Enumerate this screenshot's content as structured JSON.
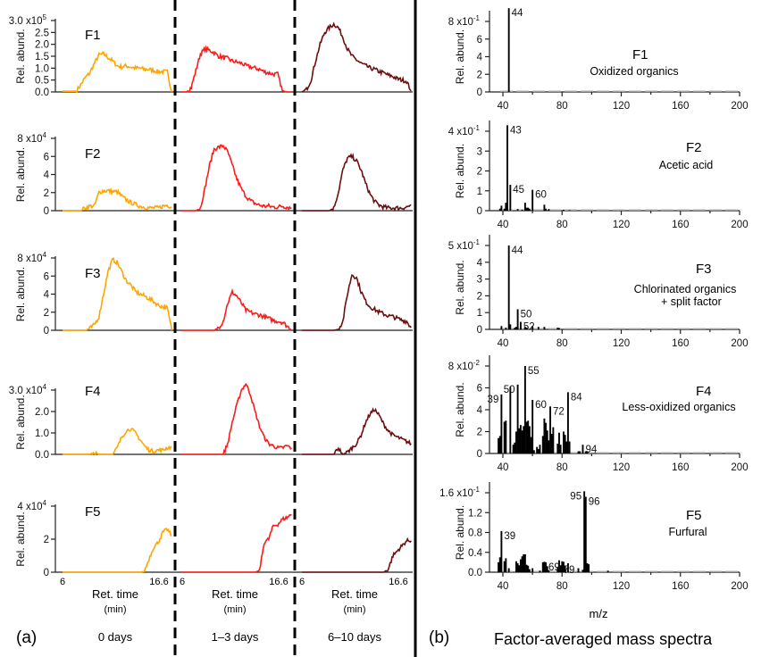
{
  "chart_data": {
    "panel_a": {
      "type": "line",
      "label": "(a)",
      "xlabel": "Ret. time",
      "xunit": "(min)",
      "x_tick_labels": [
        "6",
        "16.6"
      ],
      "x_start": 6,
      "x_step": 0.5,
      "ylabel": "Rel. abund.",
      "periods": [
        {
          "label": "0 days",
          "color": "#FFA500"
        },
        {
          "label": "1–3 days",
          "color": "#FF1A1A"
        },
        {
          "label": "6–10 days",
          "color": "#6B0F10"
        }
      ],
      "factors": [
        {
          "name": "F1",
          "yticks": [
            "0.0",
            "0.5",
            "1.0",
            "1.5",
            "2.0",
            "2.5",
            "3.0"
          ],
          "exp": "5",
          "series": [
            [
              0.03,
              0.03,
              0.03,
              0.03,
              0.3,
              0.6,
              0.8,
              1.2,
              1.55,
              1.6,
              1.45,
              1.3,
              1.1,
              1.05,
              1.1,
              1.05,
              1.0,
              1.0,
              0.95,
              0.95,
              0.9,
              0.85,
              0.85,
              0.85,
              0
            ],
            [
              0,
              0,
              0.2,
              0.9,
              1.6,
              1.8,
              1.75,
              1.65,
              1.5,
              1.45,
              1.4,
              1.3,
              1.25,
              1.2,
              1.1,
              1.05,
              1.0,
              0.95,
              0.85,
              0.8,
              0.75,
              0.75,
              0.05,
              0,
              0
            ],
            [
              0,
              0.1,
              0.5,
              1.3,
              2.0,
              2.5,
              2.7,
              2.85,
              2.7,
              2.3,
              1.8,
              1.5,
              1.35,
              1.2,
              1.1,
              1.0,
              0.95,
              0.85,
              0.8,
              0.7,
              0.65,
              0.55,
              0.5,
              0.45,
              0.05
            ]
          ]
        },
        {
          "name": "F2",
          "yticks": [
            "0",
            "2",
            "4",
            "6",
            "8"
          ],
          "exp": "4",
          "series": [
            [
              0,
              0,
              0,
              0,
              0,
              0.3,
              0.5,
              0.5,
              2.0,
              2.2,
              2.2,
              2.1,
              2.1,
              1.6,
              1.2,
              0.9,
              0.7,
              0.5,
              0.4,
              0.3,
              0.3,
              0.3,
              0.5,
              0.6,
              0.4
            ],
            [
              0,
              0,
              0,
              0,
              0.3,
              2.5,
              5.0,
              6.8,
              7.0,
              7.2,
              6.5,
              5.0,
              3.5,
              2.4,
              1.6,
              1.1,
              0.8,
              0.6,
              0.5,
              0.5,
              0.4,
              0.4,
              0.5,
              0.4,
              0.3
            ],
            [
              0,
              0,
              0,
              0,
              0,
              0,
              0,
              0.3,
              2.0,
              4.5,
              5.8,
              6.0,
              5.5,
              4.5,
              3.0,
              1.8,
              1.0,
              0.6,
              0.4,
              0.3,
              0.3,
              0.3,
              0.3,
              0.4,
              0.6
            ]
          ]
        },
        {
          "name": "F3",
          "yticks": [
            "0",
            "2",
            "4",
            "6",
            "8"
          ],
          "exp": "4",
          "series": [
            [
              0,
              0,
              0,
              0,
              0,
              0,
              0.2,
              0.6,
              1.5,
              4.0,
              6.5,
              7.8,
              7.5,
              6.5,
              5.5,
              5.0,
              4.3,
              4.0,
              3.8,
              3.5,
              3.2,
              2.8,
              2.6,
              2.5,
              0
            ],
            [
              0,
              0,
              0,
              0,
              0,
              0,
              0,
              0,
              0.3,
              1.0,
              3.0,
              4.2,
              3.8,
              3.0,
              2.2,
              2.0,
              1.8,
              1.7,
              1.5,
              1.3,
              1.1,
              1.0,
              0.9,
              0.5,
              0
            ],
            [
              0,
              0,
              0,
              0,
              0,
              0,
              0,
              0,
              0.1,
              1.0,
              4.0,
              6.2,
              5.8,
              4.3,
              3.2,
              2.6,
              2.3,
              2.0,
              1.8,
              1.6,
              1.5,
              1.3,
              1.1,
              1.0,
              0.3
            ]
          ]
        },
        {
          "name": "F4",
          "yticks": [
            "0.0",
            "1.0",
            "2.0",
            "3.0"
          ],
          "exp": "4",
          "series": [
            [
              0,
              0,
              0,
              0,
              0,
              0,
              0,
              0.1,
              0,
              0,
              0,
              0,
              0.3,
              0.8,
              1.1,
              1.2,
              1.0,
              0.7,
              0.4,
              0.2,
              0.15,
              0.2,
              0.2,
              0.3,
              0.35
            ],
            [
              0,
              0,
              0,
              0,
              0,
              0,
              0,
              0,
              0,
              0,
              0.5,
              1.5,
              2.3,
              3.0,
              3.3,
              2.8,
              2.0,
              1.3,
              0.8,
              0.5,
              0.4,
              0.3,
              0.3,
              0.4,
              0.3
            ],
            [
              0,
              0,
              0,
              0,
              0,
              0,
              0,
              0,
              0.3,
              0,
              0.1,
              0.3,
              0.5,
              0.9,
              1.5,
              1.9,
              2.1,
              1.8,
              1.4,
              1.1,
              0.9,
              0.8,
              0.7,
              0.6,
              0.5
            ]
          ]
        },
        {
          "name": "F5",
          "yticks": [
            "0",
            "2",
            "4"
          ],
          "exp": "4",
          "series": [
            [
              0,
              0,
              0,
              0,
              0,
              0,
              0,
              0,
              0,
              0,
              0,
              0,
              0,
              0,
              0,
              0,
              0,
              0,
              0.05,
              0.8,
              1.5,
              1.8,
              2.4,
              2.6,
              2.2
            ],
            [
              0,
              0,
              0,
              0,
              0,
              0,
              0,
              0,
              0,
              0,
              0,
              0,
              0,
              0,
              0,
              0,
              0,
              0.1,
              1.8,
              2.0,
              2.8,
              2.9,
              3.2,
              3.3,
              3.5
            ],
            [
              0,
              0,
              0,
              0,
              0,
              0,
              0,
              0,
              0,
              0,
              0,
              0,
              0,
              0,
              0,
              0,
              0,
              0,
              0,
              0.2,
              1.0,
              1.3,
              1.6,
              1.9,
              1.9
            ]
          ]
        }
      ]
    },
    "panel_b": {
      "type": "bar",
      "label": "(b)",
      "title": "Factor-averaged mass spectra",
      "xlabel": "m/z",
      "ylabel": "Rel. abund.",
      "x_ticks": [
        "40",
        "80",
        "120",
        "160",
        "200"
      ],
      "xlim": [
        31,
        200
      ],
      "factors": [
        {
          "name": "F1",
          "description": "Oxidized organics",
          "yticks": [
            "0",
            "2",
            "4",
            "6",
            "8"
          ],
          "exp": "-1",
          "bars": [
            [
              44,
              0.95
            ]
          ],
          "peak_labels": [
            "44"
          ]
        },
        {
          "name": "F2",
          "description": "Acetic acid",
          "yticks": [
            "0",
            "1",
            "2",
            "3",
            "4"
          ],
          "exp": "-1",
          "bars": [
            [
              38,
              0.01
            ],
            [
              39,
              0.025
            ],
            [
              41,
              0.01
            ],
            [
              42,
              0.04
            ],
            [
              43,
              0.43
            ],
            [
              45,
              0.13
            ],
            [
              50,
              0.008
            ],
            [
              53,
              0.005
            ],
            [
              55,
              0.04
            ],
            [
              56,
              0.015
            ],
            [
              57,
              0.015
            ],
            [
              58,
              0.01
            ],
            [
              60,
              0.105
            ],
            [
              68,
              0.03
            ],
            [
              69,
              0.01
            ],
            [
              71,
              0.008
            ],
            [
              81,
              0.005
            ],
            [
              85,
              0.003
            ]
          ],
          "peak_labels": [
            "43",
            "45",
            "60"
          ]
        },
        {
          "name": "F3",
          "description": "Chlorinated organics",
          "description2": "+ split factor",
          "yticks": [
            "0",
            "1",
            "2",
            "3",
            "4",
            "5"
          ],
          "exp": "-1",
          "bars": [
            [
              39,
              0.02
            ],
            [
              42,
              0.01
            ],
            [
              44,
              0.5
            ],
            [
              45,
              0.03
            ],
            [
              48,
              0.01
            ],
            [
              49,
              0.015
            ],
            [
              50,
              0.12
            ],
            [
              52,
              0.045
            ],
            [
              55,
              0.015
            ],
            [
              56,
              0.01
            ],
            [
              60,
              0.02
            ],
            [
              64,
              0.015
            ],
            [
              68,
              0.015
            ],
            [
              77,
              0.01
            ],
            [
              78,
              0.008
            ]
          ],
          "peak_labels": [
            "44",
            "50",
            "52"
          ]
        },
        {
          "name": "F4",
          "description": "Less-oxidized organics",
          "yticks": [
            "0",
            "2",
            "4",
            "6",
            "8"
          ],
          "exp": "-2",
          "bars": [
            [
              37,
              0.014
            ],
            [
              38,
              0.016
            ],
            [
              39,
              0.054
            ],
            [
              41,
              0.029
            ],
            [
              42,
              0.03
            ],
            [
              45,
              0.061
            ],
            [
              47,
              0.008
            ],
            [
              48,
              0.01
            ],
            [
              49,
              0.02
            ],
            [
              50,
              0.063
            ],
            [
              51,
              0.023
            ],
            [
              52,
              0.026
            ],
            [
              53,
              0.021
            ],
            [
              54,
              0.025
            ],
            [
              55,
              0.08
            ],
            [
              56,
              0.029
            ],
            [
              57,
              0.03
            ],
            [
              58,
              0.025
            ],
            [
              59,
              0.015
            ],
            [
              60,
              0.049
            ],
            [
              61,
              0.003
            ],
            [
              63,
              0.006
            ],
            [
              64,
              0.004
            ],
            [
              65,
              0.008
            ],
            [
              67,
              0.016
            ],
            [
              68,
              0.032
            ],
            [
              69,
              0.028
            ],
            [
              70,
              0.021
            ],
            [
              71,
              0.012
            ],
            [
              72,
              0.043
            ],
            [
              73,
              0.018
            ],
            [
              74,
              0.024
            ],
            [
              77,
              0.009
            ],
            [
              78,
              0.019
            ],
            [
              79,
              0.008
            ],
            [
              81,
              0.02
            ],
            [
              82,
              0.017
            ],
            [
              83,
              0.011
            ],
            [
              84,
              0.056
            ],
            [
              85,
              0.011
            ],
            [
              91,
              0.002
            ],
            [
              92,
              0.002
            ],
            [
              94,
              0.008
            ],
            [
              96,
              0.002
            ],
            [
              97,
              0.002
            ]
          ],
          "peak_labels": [
            "39",
            "50",
            "55",
            "60",
            "72",
            "84",
            "94"
          ]
        },
        {
          "name": "F5",
          "description": "Furfural",
          "yticks": [
            "0.0",
            "0.4",
            "0.8",
            "1.2",
            "1.6"
          ],
          "exp": "-1",
          "bars": [
            [
              37,
              0.02
            ],
            [
              38,
              0.03
            ],
            [
              39,
              0.083
            ],
            [
              41,
              0.022
            ],
            [
              42,
              0.028
            ],
            [
              44,
              0.008
            ],
            [
              49,
              0.022
            ],
            [
              50,
              0.018
            ],
            [
              51,
              0.014
            ],
            [
              52,
              0.026
            ],
            [
              53,
              0.032
            ],
            [
              54,
              0.036
            ],
            [
              55,
              0.036
            ],
            [
              56,
              0.015
            ],
            [
              57,
              0.013
            ],
            [
              58,
              0.006
            ],
            [
              60,
              0.008
            ],
            [
              65,
              0.003
            ],
            [
              67,
              0.02
            ],
            [
              68,
              0.021
            ],
            [
              69,
              0.02
            ],
            [
              70,
              0.012
            ],
            [
              71,
              0.004
            ],
            [
              77,
              0.01
            ],
            [
              78,
              0.024
            ],
            [
              79,
              0.014
            ],
            [
              80,
              0.022
            ],
            [
              81,
              0.021
            ],
            [
              82,
              0.013
            ],
            [
              84,
              0.018
            ],
            [
              91,
              0.008
            ],
            [
              94,
              0.005
            ],
            [
              95,
              0.163
            ],
            [
              96,
              0.152
            ],
            [
              97,
              0.018
            ],
            [
              98,
              0.016
            ],
            [
              111,
              0.003
            ]
          ],
          "peak_labels": [
            "39",
            "69",
            "79",
            "95",
            "96"
          ]
        }
      ]
    }
  }
}
